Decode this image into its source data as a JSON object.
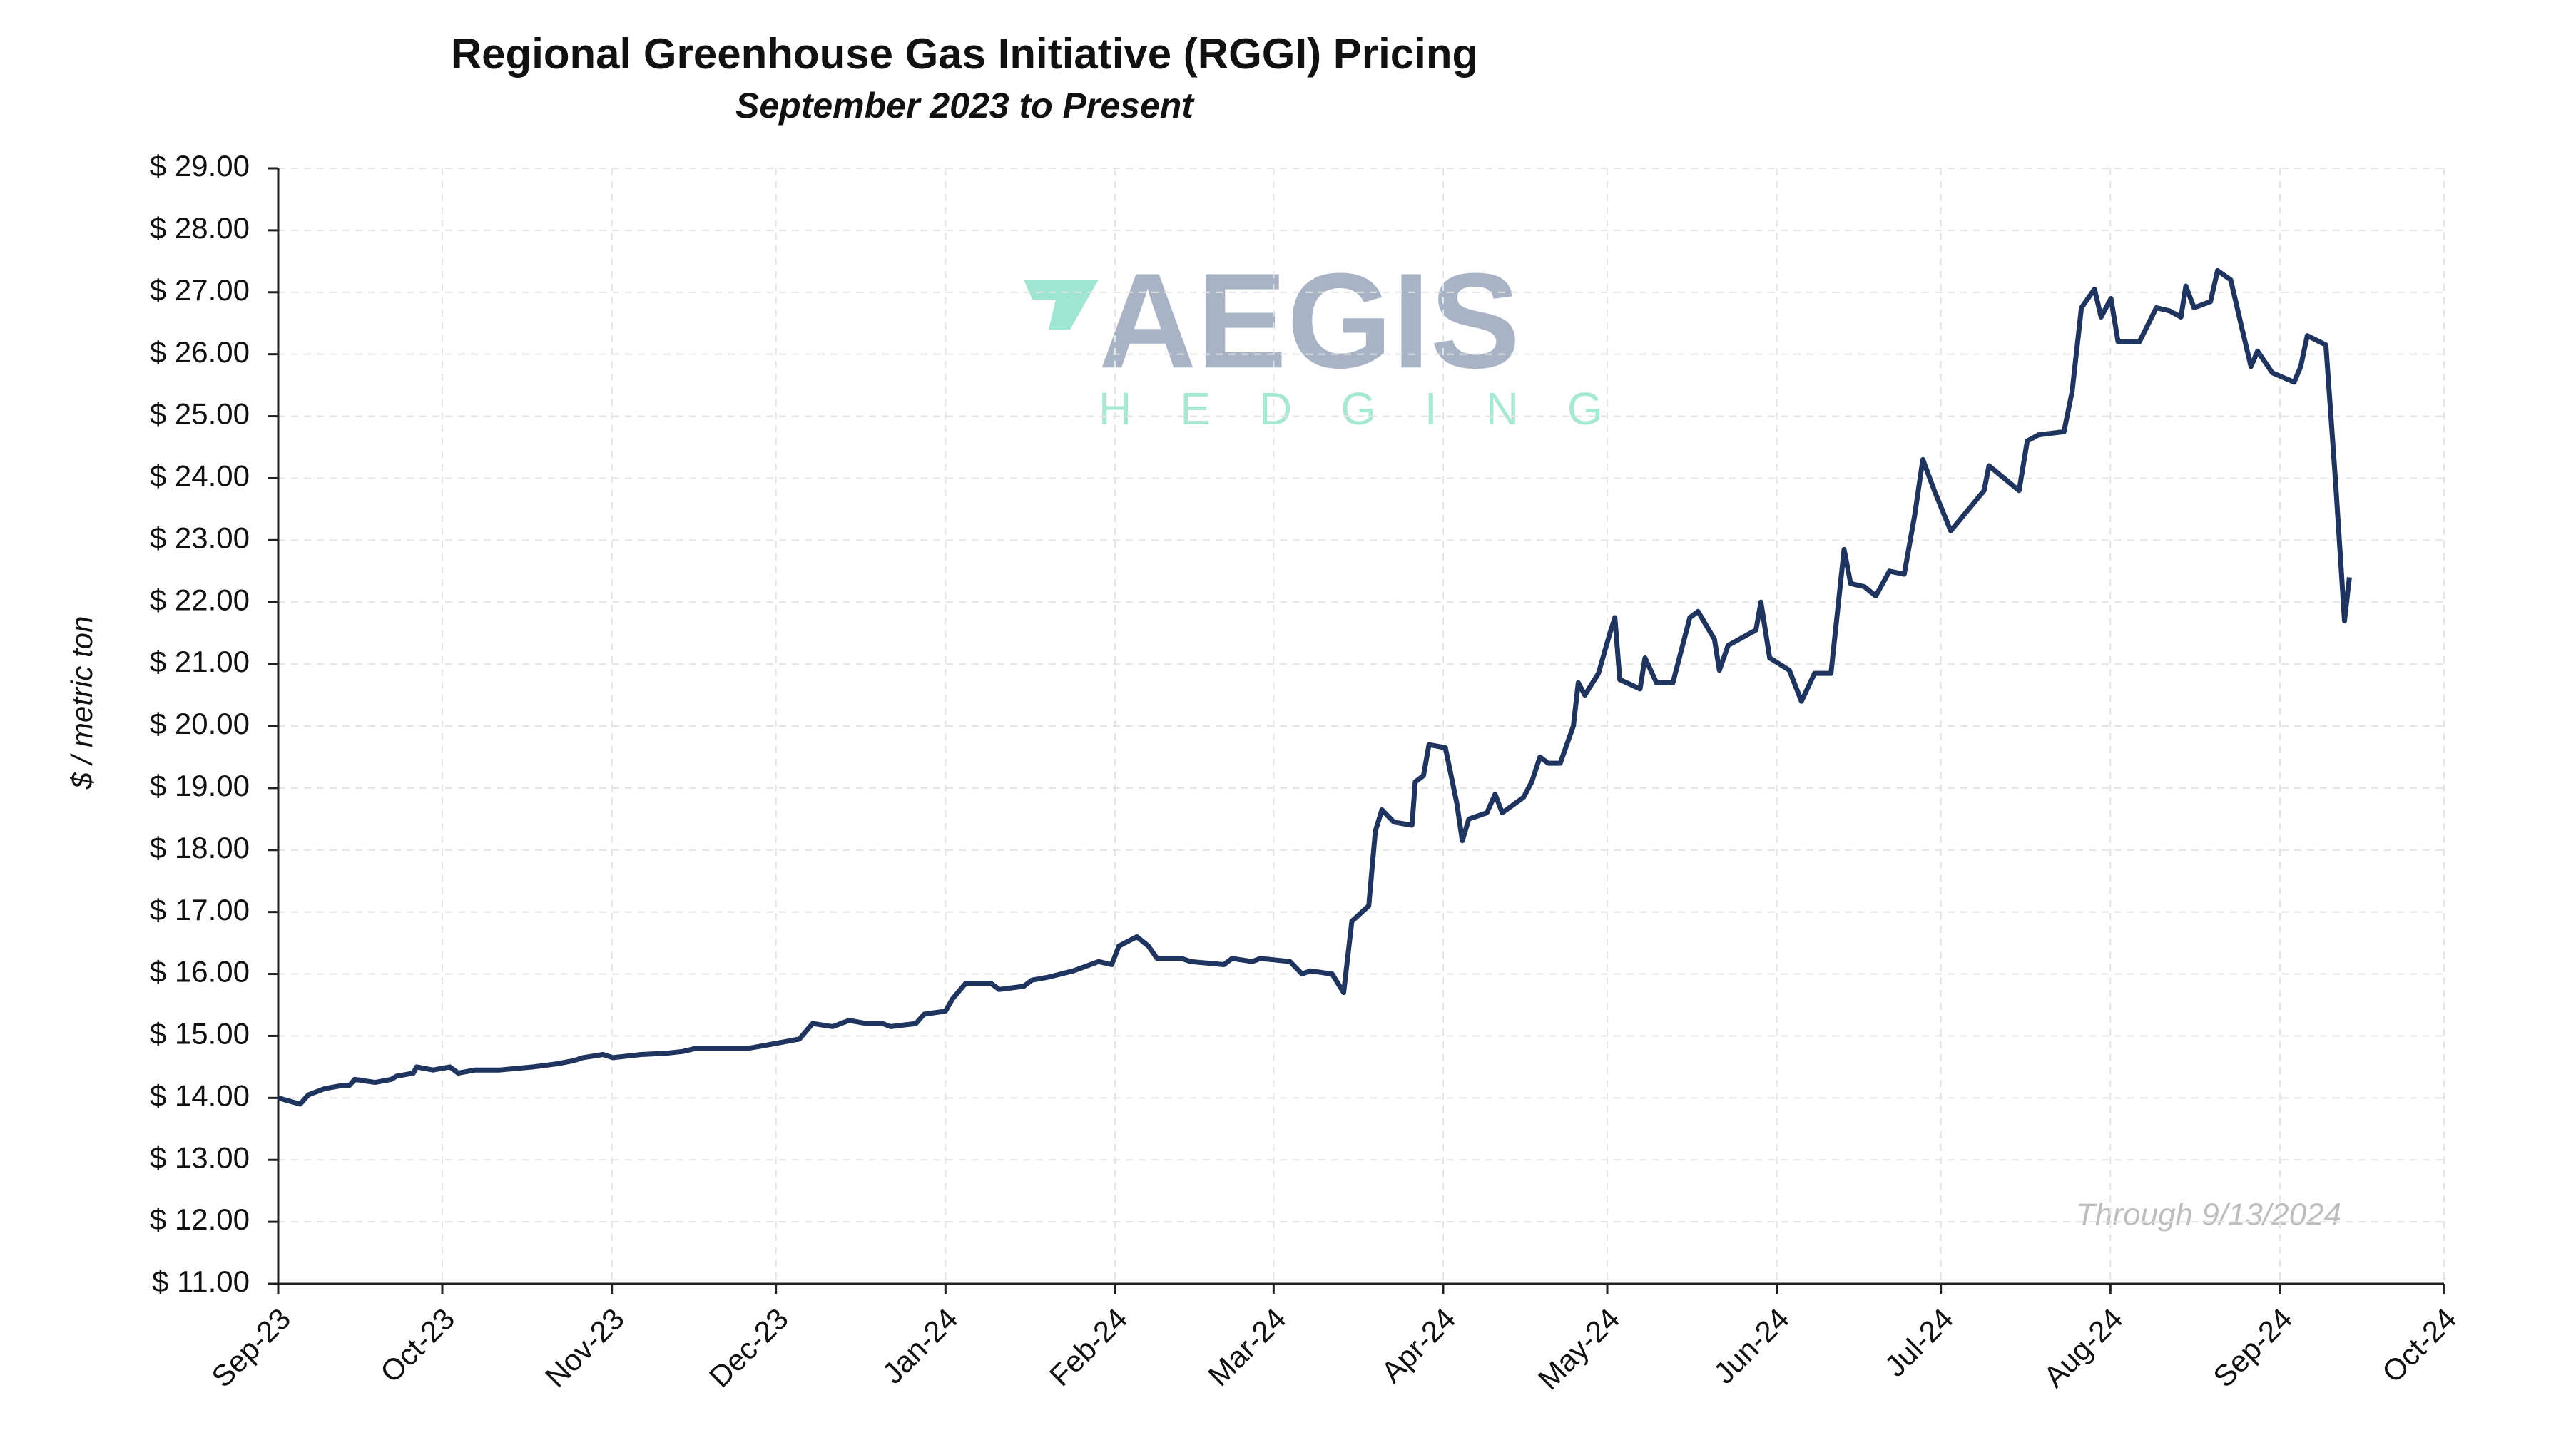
{
  "chart_data": {
    "type": "line",
    "title": "Regional Greenhouse Gas Initiative (RGGI) Pricing",
    "subtitle": "September 2023 to Present",
    "y_label": "$ / metric ton",
    "annotation": "Through 9/13/2024",
    "logo": {
      "name": "AEGIS",
      "tagline": "HEDGING"
    },
    "grid": true,
    "xlim": [
      0,
      396
    ],
    "xticks": [
      {
        "value": 0,
        "label": "Sep-23"
      },
      {
        "value": 30,
        "label": "Oct-23"
      },
      {
        "value": 61,
        "label": "Nov-23"
      },
      {
        "value": 91,
        "label": "Dec-23"
      },
      {
        "value": 122,
        "label": "Jan-24"
      },
      {
        "value": 153,
        "label": "Feb-24"
      },
      {
        "value": 182,
        "label": "Mar-24"
      },
      {
        "value": 213,
        "label": "Apr-24"
      },
      {
        "value": 243,
        "label": "May-24"
      },
      {
        "value": 274,
        "label": "Jun-24"
      },
      {
        "value": 304,
        "label": "Jul-24"
      },
      {
        "value": 335,
        "label": "Aug-24"
      },
      {
        "value": 366,
        "label": "Sep-24"
      },
      {
        "value": 396,
        "label": "Oct-24"
      }
    ],
    "ylim": [
      11,
      29
    ],
    "yticks": [
      {
        "value": 11,
        "label": "$ 11.00"
      },
      {
        "value": 12,
        "label": "$ 12.00"
      },
      {
        "value": 13,
        "label": "$ 13.00"
      },
      {
        "value": 14,
        "label": "$ 14.00"
      },
      {
        "value": 15,
        "label": "$ 15.00"
      },
      {
        "value": 16,
        "label": "$ 16.00"
      },
      {
        "value": 17,
        "label": "$ 17.00"
      },
      {
        "value": 18,
        "label": "$ 18.00"
      },
      {
        "value": 19,
        "label": "$ 19.00"
      },
      {
        "value": 20,
        "label": "$ 20.00"
      },
      {
        "value": 21,
        "label": "$ 21.00"
      },
      {
        "value": 22,
        "label": "$ 22.00"
      },
      {
        "value": 23,
        "label": "$ 23.00"
      },
      {
        "value": 24,
        "label": "$ 24.00"
      },
      {
        "value": 25,
        "label": "$ 25.00"
      },
      {
        "value": 26,
        "label": "$ 26.00"
      },
      {
        "value": 27,
        "label": "$ 27.00"
      },
      {
        "value": 28,
        "label": "$ 28.00"
      },
      {
        "value": 29,
        "label": "$ 29.00"
      }
    ],
    "color": "#1f3560",
    "x": [
      0,
      4,
      5.5,
      8.5,
      11.6,
      13,
      14,
      17.7,
      20.7,
      21.6,
      24.7,
      25.3,
      28.3,
      31.4,
      32.9,
      36,
      40.5,
      46.6,
      51,
      54,
      55.7,
      59.4,
      61.2,
      66.4,
      70.9,
      74,
      76.4,
      80,
      86,
      89.2,
      95.3,
      97.7,
      101.4,
      104.4,
      107.5,
      110.5,
      112,
      116.6,
      118.1,
      122,
      123.3,
      125.7,
      130.3,
      131.8,
      136.3,
      137.8,
      140.9,
      145.4,
      150,
      152.4,
      153.7,
      157,
      159.1,
      160.7,
      165.2,
      166.8,
      172.9,
      174.4,
      178.1,
      179.6,
      185,
      187.2,
      188.7,
      192.7,
      194.8,
      196.3,
      199.4,
      200.6,
      201.8,
      204,
      207.3,
      207.9,
      209.4,
      210.4,
      213.4,
      215.5,
      216.5,
      217.7,
      221,
      222.5,
      223.8,
      227.7,
      229.2,
      230.7,
      232.2,
      234.4,
      236.8,
      237.7,
      238.9,
      241.4,
      243.5,
      244.4,
      245.3,
      249,
      249.9,
      252,
      255,
      258.1,
      259.6,
      262.6,
      263.5,
      265.1,
      270.2,
      271.1,
      272.7,
      276.3,
      278.5,
      280.9,
      283.9,
      286.3,
      287.5,
      290,
      292.1,
      294.6,
      297.3,
      299.2,
      300.7,
      302.8,
      305.8,
      311.9,
      312.8,
      318.3,
      319.8,
      321.9,
      326.5,
      328,
      329.7,
      332.1,
      333.3,
      335.1,
      336.4,
      340.3,
      343.4,
      345.8,
      347.9,
      348.8,
      350.3,
      353.3,
      354.6,
      357,
      359.1,
      360.7,
      361.9,
      364.6,
      368.6,
      369.8,
      371,
      374.4,
      376.2,
      377.8,
      378.7
    ],
    "values": [
      14.0,
      13.9,
      14.05,
      14.15,
      14.2,
      14.2,
      14.3,
      14.25,
      14.3,
      14.35,
      14.4,
      14.5,
      14.45,
      14.5,
      14.4,
      14.45,
      14.45,
      14.5,
      14.55,
      14.6,
      14.65,
      14.7,
      14.65,
      14.7,
      14.72,
      14.75,
      14.8,
      14.8,
      14.8,
      14.85,
      14.95,
      15.2,
      15.15,
      15.25,
      15.2,
      15.2,
      15.15,
      15.2,
      15.35,
      15.4,
      15.6,
      15.85,
      15.85,
      15.75,
      15.8,
      15.9,
      15.95,
      16.05,
      16.2,
      16.15,
      16.45,
      16.6,
      16.45,
      16.25,
      16.25,
      16.2,
      16.15,
      16.25,
      16.2,
      16.25,
      16.2,
      16.0,
      16.05,
      16.0,
      15.7,
      16.85,
      17.1,
      18.3,
      18.65,
      18.45,
      18.4,
      19.1,
      19.2,
      19.7,
      19.65,
      18.75,
      18.15,
      18.5,
      18.6,
      18.9,
      18.6,
      18.85,
      19.1,
      19.5,
      19.4,
      19.4,
      20.0,
      20.7,
      20.5,
      20.85,
      21.5,
      21.75,
      20.75,
      20.6,
      21.1,
      20.7,
      20.7,
      21.75,
      21.85,
      21.4,
      20.9,
      21.3,
      21.55,
      22.0,
      21.1,
      20.9,
      20.4,
      20.85,
      20.85,
      22.85,
      22.3,
      22.25,
      22.1,
      22.5,
      22.45,
      23.4,
      24.3,
      23.8,
      23.15,
      23.8,
      24.2,
      23.8,
      24.6,
      24.7,
      24.75,
      25.4,
      26.75,
      27.05,
      26.6,
      26.9,
      26.2,
      26.2,
      26.75,
      26.7,
      26.6,
      27.1,
      26.75,
      26.85,
      27.35,
      27.2,
      26.4,
      25.8,
      26.05,
      25.7,
      25.55,
      25.8,
      26.3,
      26.15,
      23.9,
      21.7,
      22.4
    ]
  }
}
